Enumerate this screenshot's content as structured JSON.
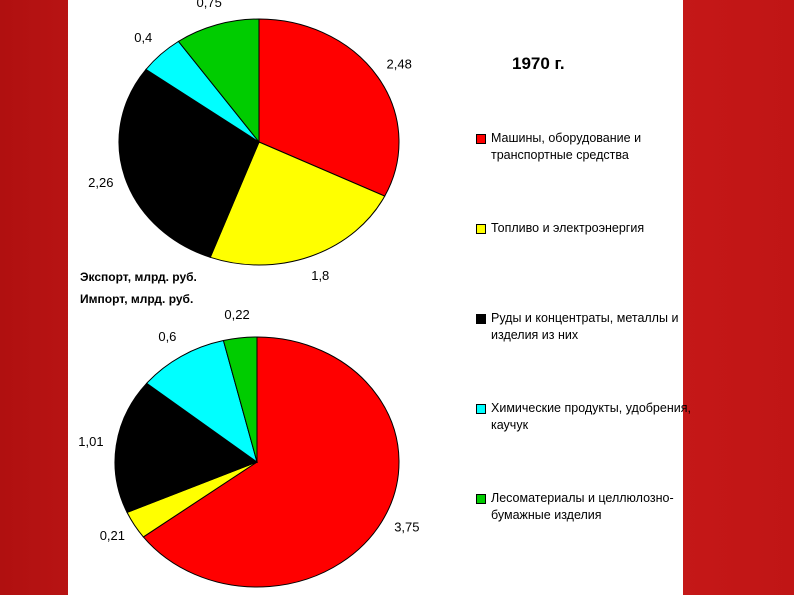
{
  "title": "1970 г.",
  "chart_data": [
    {
      "type": "pie",
      "title": "Экспорт, млрд. руб.",
      "categories": [
        "Машины, оборудование и транспортные средства",
        "Топливо и электроэнергия",
        "Руды и концентраты, металлы и изделия из них",
        "Химические продукты, удобрения, каучук",
        "Лесоматериалы и целлюлозно-бумажные изделия"
      ],
      "colors": [
        "#ff0000",
        "#ffff00",
        "#000000",
        "#00ffff",
        "#00cc00"
      ],
      "values": [
        2.48,
        1.8,
        2.26,
        0.4,
        0.75
      ],
      "value_labels": [
        "2,48",
        "1,8",
        "2,26",
        "0,4",
        "0,75"
      ]
    },
    {
      "type": "pie",
      "title": "Импорт, млрд. руб.",
      "colors": [
        "#ff0000",
        "#ffff00",
        "#000000",
        "#00ffff",
        "#00cc00"
      ],
      "values": [
        3.75,
        0.21,
        1.01,
        0.6,
        0.22
      ],
      "value_labels": [
        "3,75",
        "0,21",
        "1,01",
        "0,6",
        "0,22"
      ]
    }
  ]
}
